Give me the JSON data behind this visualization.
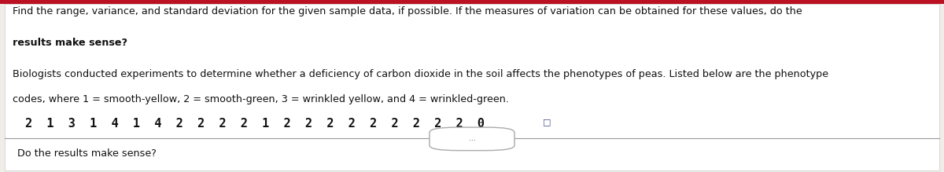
{
  "bg_color": "#e8e8e8",
  "panel_color": "#f0ede8",
  "top_bar_color": "#bb1122",
  "line1": "Find the range, variance, and standard deviation for the given sample data, if possible. If the measures of variation can be obtained for these values, do the",
  "line2": "results make sense?",
  "line3": "Biologists conducted experiments to determine whether a deficiency of carbon dioxide in the soil affects the phenotypes of peas. Listed below are the phenotype",
  "line4": "codes, where 1 = smooth-yellow, 2 = smooth-green, 3 = wrinkled yellow, and 4 = wrinkled-green.",
  "data_line": "2  1  3  1  4  1  4  2  2  2  2  1  2  2  2  2  2  2  2  2  2  0",
  "bottom_line": "Do the results make sense?",
  "ellipsis_label": "...",
  "font_size_main": 9.2,
  "font_size_data": 11.0,
  "font_size_bottom": 9.2
}
